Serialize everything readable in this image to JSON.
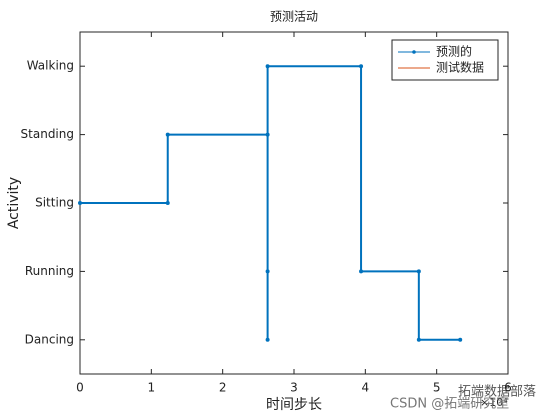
{
  "chart_data": {
    "type": "line",
    "title": "预测活动",
    "x_label": "时间步长",
    "y_label": "Activity",
    "x_exponent_label": "×10⁴",
    "xlim": [
      0,
      6
    ],
    "xticks": [
      0,
      1,
      2,
      3,
      4,
      5,
      6
    ],
    "ylim": [
      0.5,
      5.5
    ],
    "yticks": [
      {
        "value": 1,
        "label": "Dancing"
      },
      {
        "value": 2,
        "label": "Running"
      },
      {
        "value": 3,
        "label": "Sitting"
      },
      {
        "value": 4,
        "label": "Standing"
      },
      {
        "value": 5,
        "label": "Walking"
      }
    ],
    "legend": "northeast",
    "series": [
      {
        "name": "预测的",
        "color": "#0072bd",
        "marker": true,
        "x": [
          0,
          1.23,
          1.23,
          2.63,
          2.63,
          2.63,
          2.63,
          3.94,
          3.94,
          4.75,
          4.75,
          5.33
        ],
        "values": [
          3,
          3,
          4,
          4,
          1,
          2,
          5,
          5,
          2,
          2,
          1,
          1
        ]
      },
      {
        "name": "测试数据",
        "color": "#d95319",
        "marker": false,
        "x": [
          0,
          1.23,
          1.23,
          2.63,
          2.63,
          3.94,
          3.94,
          4.75,
          4.75,
          5.33
        ],
        "values": [
          3,
          3,
          4,
          4,
          5,
          5,
          2,
          2,
          1,
          1
        ]
      }
    ],
    "watermarks": [
      "拓端数据部落",
      "CSDN @拓端研究室"
    ]
  }
}
